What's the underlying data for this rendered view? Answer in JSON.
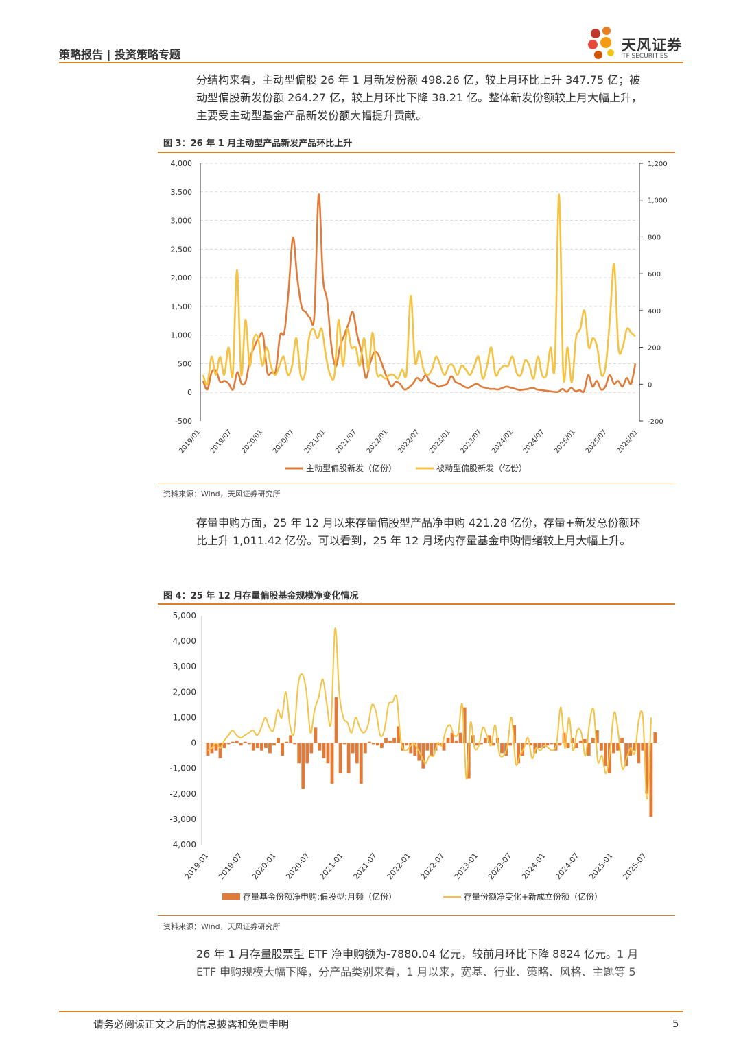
{
  "header": {
    "title": "策略报告 | 投资策略专题",
    "logo_name": "天风证券",
    "logo_en": "TF SECURITIES"
  },
  "para1": {
    "line1": "分结构来看，主动型偏股 26 年 1 月新发份额 498.26 亿，较上月环比上升 347.75 亿；被",
    "line2": "动型偏股新发份额 264.27 亿，较上月环比下降 38.21 亿。整体新发份额较上月大幅上升，",
    "line3": "主要受主动型基金产品新发份额大幅提升贡献。"
  },
  "fig3": {
    "title": "图 3：26 年 1 月主动型产品新发产品环比上升",
    "source": "资料来源：Wind，天风证券研究所"
  },
  "para2": {
    "line1": "存量申购方面，25 年 12 月以来存量偏股型产品净申购 421.28 亿份，存量+新发总份额环",
    "line2a": "比上升 1,011.42 亿份。",
    "line2b": "可以看到，25 年 12 月场内存量基金申购情绪较上月大幅上升。"
  },
  "fig4": {
    "title": "图 4：25 年 12 月存量偏股基金规模净变化情况",
    "source": "资料来源：Wind，天风证券研究所"
  },
  "para3": {
    "line1a": "26 年 1 月存量股票型 ETF 净申购额为-7880.04 亿元，较前月环比下降 8824 亿元。",
    "line1b": "1 月",
    "line2": "ETF 申购规模大幅下降，分产品类别来看，1 月以来，宽基、行业、策略、风格、主题等 5"
  },
  "footer": {
    "disclaimer": "请务必阅读正文之后的信息披露和免责申明",
    "page": "5"
  },
  "chart_data": [
    {
      "type": "line",
      "title": "",
      "x_ticks": [
        "2019/01",
        "2019/07",
        "2020/01",
        "2020/07",
        "2021/01",
        "2021/07",
        "2022/01",
        "2022/07",
        "2023/01",
        "2023/07",
        "2024/01",
        "2024/07",
        "2025/01",
        "2025/07",
        "2026/01"
      ],
      "left_axis": {
        "min": -500,
        "max": 4000,
        "ticks": [
          "-500",
          "0",
          "500",
          "1,000",
          "1,500",
          "2,000",
          "2,500",
          "3,000",
          "3,500",
          "4,000"
        ]
      },
      "right_axis": {
        "min": -200,
        "max": 1200,
        "ticks": [
          "-200",
          "0",
          "200",
          "400",
          "600",
          "800",
          "1,000",
          "1,200"
        ]
      },
      "grid": true,
      "legend_position": "bottom",
      "series": [
        {
          "name": "主动型偏股新发（亿份）",
          "axis": "left",
          "color": "#e07b39",
          "values": [
            200,
            50,
            350,
            380,
            180,
            200,
            150,
            50,
            350,
            150,
            200,
            600,
            800,
            950,
            1000,
            350,
            350,
            380,
            1000,
            1050,
            1800,
            2700,
            2000,
            1500,
            1400,
            1300,
            1350,
            3450,
            2000,
            1600,
            800,
            450,
            800,
            1000,
            1200,
            1400,
            1000,
            700,
            250,
            500,
            700,
            650,
            450,
            250,
            100,
            180,
            150,
            50,
            80,
            150,
            250,
            200,
            300,
            180,
            150,
            100,
            120,
            150,
            280,
            180,
            150,
            100,
            80,
            120,
            150,
            100,
            80,
            60,
            60,
            50,
            80,
            100,
            80,
            60,
            40,
            50,
            60,
            80,
            50,
            40,
            30,
            20,
            10,
            10,
            60,
            10,
            80,
            20,
            40,
            20,
            300,
            100,
            200,
            50,
            100,
            300,
            150,
            200,
            100,
            250,
            150,
            500
          ]
        },
        {
          "name": "被动型偏股新发（亿份）",
          "axis": "right",
          "color": "#f5c242",
          "values": [
            50,
            0,
            150,
            50,
            150,
            50,
            200,
            50,
            620,
            50,
            350,
            100,
            250,
            250,
            100,
            200,
            100,
            50,
            100,
            150,
            50,
            100,
            250,
            50,
            50,
            250,
            300,
            250,
            300,
            150,
            50,
            50,
            350,
            100,
            300,
            200,
            200,
            100,
            250,
            80,
            280,
            60,
            50,
            30,
            50,
            50,
            30,
            80,
            60,
            480,
            120,
            180,
            80,
            50,
            80,
            150,
            100,
            50,
            100,
            100,
            50,
            100,
            80,
            50,
            100,
            150,
            30,
            100,
            200,
            50,
            80,
            100,
            100,
            150,
            60,
            50,
            130,
            100,
            30,
            150,
            50,
            50,
            200,
            100,
            1030,
            50,
            200,
            10,
            250,
            300,
            400,
            200,
            250,
            200,
            50,
            100,
            350,
            650,
            200,
            200,
            300,
            280,
            260
          ]
        }
      ]
    },
    {
      "type": "bar",
      "title": "",
      "x_ticks": [
        "2019-01",
        "2019-07",
        "2020-01",
        "2020-07",
        "2021-01",
        "2021-07",
        "2022-01",
        "2022-07",
        "2023-01",
        "2023-07",
        "2024-01",
        "2024-07",
        "2025-01",
        "2025-07"
      ],
      "y_axis": {
        "min": -4000,
        "max": 5000,
        "ticks": [
          "-4,000",
          "-3,000",
          "-2,000",
          "-1,000",
          "0",
          "1,000",
          "2,000",
          "3,000",
          "4,000",
          "5,000"
        ]
      },
      "grid": false,
      "legend_position": "bottom",
      "series": [
        {
          "name": "存量基金份额净申购:偏股型:月频（亿份）",
          "kind": "bar",
          "color": "#e07b39",
          "values": [
            -500,
            -400,
            -300,
            -600,
            -200,
            -50,
            50,
            100,
            -100,
            50,
            -50,
            -300,
            -200,
            -300,
            -200,
            -400,
            -100,
            200,
            -500,
            50,
            300,
            -50,
            -800,
            -1800,
            -800,
            -400,
            600,
            -300,
            -600,
            -800,
            -1600,
            1800,
            -1200,
            -50,
            -1200,
            -400,
            -800,
            -1600,
            -400,
            50,
            -50,
            -100,
            -200,
            200,
            100,
            200,
            650,
            -300,
            -100,
            -400,
            -500,
            -700,
            -1000,
            -300,
            -500,
            -300,
            -100,
            -300,
            200,
            400,
            100,
            400,
            1400,
            -1400,
            300,
            -100,
            -50,
            200,
            300,
            -100,
            200,
            -400,
            -500,
            -100,
            700,
            -800,
            -500,
            -50,
            -100,
            -400,
            -200,
            -200,
            -100,
            -50,
            -300,
            -100,
            400,
            -200,
            200,
            -200,
            100,
            150,
            -500,
            200,
            500,
            -300,
            -900,
            -1200,
            -400,
            -300,
            200,
            -900,
            -500,
            -300,
            -800,
            -300,
            -2000,
            -2900,
            420
          ]
        },
        {
          "name": "存量份额净变化+新成立份额（亿份）",
          "kind": "line",
          "color": "#f5c242",
          "values": [
            -300,
            -200,
            0,
            -200,
            100,
            300,
            500,
            300,
            200,
            300,
            400,
            500,
            300,
            600,
            1000,
            600,
            500,
            1300,
            1000,
            2000,
            700,
            400,
            2300,
            2700,
            2000,
            400,
            1300,
            1800,
            2500,
            1500,
            800,
            4500,
            2000,
            1000,
            800,
            400,
            1000,
            600,
            400,
            700,
            1500,
            1200,
            300,
            500,
            1500,
            1600,
            1800,
            100,
            -300,
            -200,
            0,
            -200,
            -500,
            -800,
            -500,
            -500,
            0,
            -100,
            500,
            700,
            300,
            400,
            1500,
            -1400,
            800,
            -200,
            -100,
            600,
            300,
            -100,
            700,
            -400,
            -500,
            -100,
            1000,
            -800,
            -500,
            -200,
            200,
            -600,
            -200,
            -300,
            -100,
            -200,
            -300,
            0,
            1400,
            -200,
            1000,
            -300,
            500,
            400,
            -500,
            800,
            1300,
            -700,
            -500,
            -1200,
            -300,
            1200,
            400,
            -1000,
            -600,
            -200,
            -400,
            900,
            1000,
            -2200,
            1000
          ]
        }
      ]
    }
  ]
}
